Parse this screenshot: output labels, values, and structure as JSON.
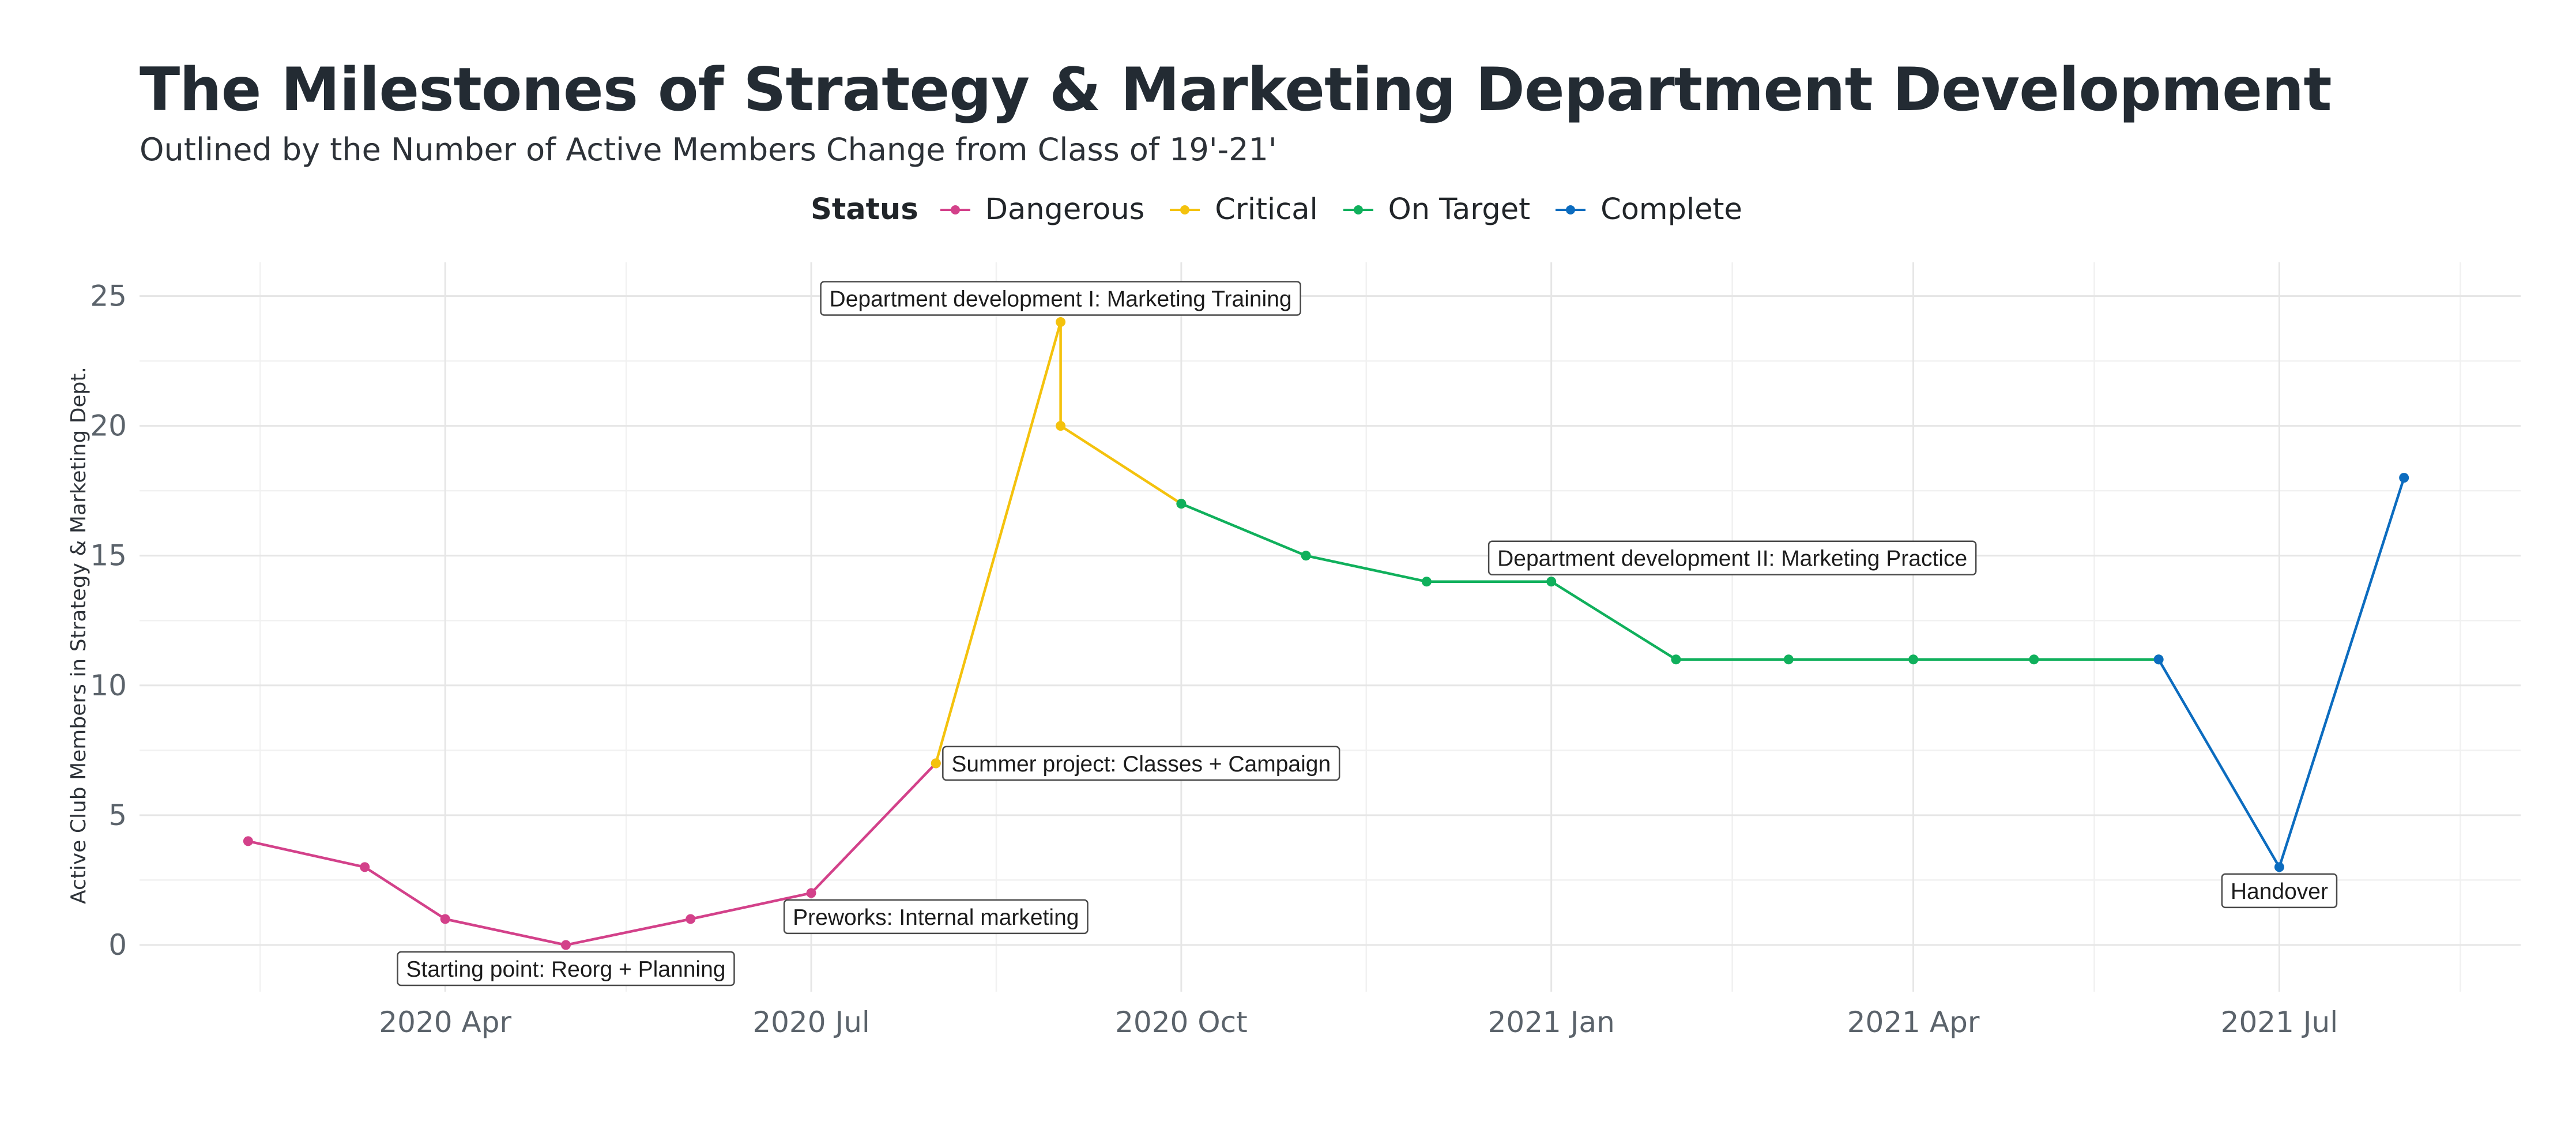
{
  "chart_data": {
    "type": "line",
    "title": "The Milestones of Strategy & Marketing Department Development",
    "subtitle": "Outlined by the Number of Active Members Change from Class of 19'-21'",
    "ylabel": "Active Club Members in Strategy & Marketing Dept.",
    "xlabel": "",
    "ylim": [
      -1.8,
      26.3
    ],
    "xlim": [
      "2020-01-16",
      "2021-08-30"
    ],
    "yticks": [
      0,
      5,
      10,
      15,
      20,
      25
    ],
    "xticks": [
      {
        "date": "2020-04-01",
        "label": "2020 Apr"
      },
      {
        "date": "2020-07-01",
        "label": "2020 Jul"
      },
      {
        "date": "2020-10-01",
        "label": "2020 Oct"
      },
      {
        "date": "2021-01-01",
        "label": "2021 Jan"
      },
      {
        "date": "2021-04-01",
        "label": "2021 Apr"
      },
      {
        "date": "2021-07-01",
        "label": "2021 Jul"
      }
    ],
    "legend": {
      "title": "Status",
      "placement": "top-center"
    },
    "grid": true,
    "series": [
      {
        "name": "Dangerous",
        "color": "#d3418a",
        "points": [
          {
            "x": "2020-02-12",
            "y": 4
          },
          {
            "x": "2020-03-12",
            "y": 3
          },
          {
            "x": "2020-04-01",
            "y": 1
          },
          {
            "x": "2020-05-01",
            "y": 0
          },
          {
            "x": "2020-06-01",
            "y": 1
          },
          {
            "x": "2020-07-01",
            "y": 2
          },
          {
            "x": "2020-08-01",
            "y": 7
          }
        ]
      },
      {
        "name": "Critical",
        "color": "#f4c20d",
        "points": [
          {
            "x": "2020-08-01",
            "y": 7
          },
          {
            "x": "2020-09-01",
            "y": 24
          },
          {
            "x": "2020-09-01",
            "y": 20
          },
          {
            "x": "2020-10-01",
            "y": 17
          }
        ]
      },
      {
        "name": "On Target",
        "color": "#10b05c",
        "points": [
          {
            "x": "2020-10-01",
            "y": 17
          },
          {
            "x": "2020-11-01",
            "y": 15
          },
          {
            "x": "2020-12-01",
            "y": 14
          },
          {
            "x": "2021-01-01",
            "y": 14
          },
          {
            "x": "2021-02-01",
            "y": 11
          },
          {
            "x": "2021-03-01",
            "y": 11
          },
          {
            "x": "2021-04-01",
            "y": 11
          },
          {
            "x": "2021-05-01",
            "y": 11
          },
          {
            "x": "2021-06-01",
            "y": 11
          }
        ]
      },
      {
        "name": "Complete",
        "color": "#0c6cbf",
        "points": [
          {
            "x": "2021-06-01",
            "y": 11
          },
          {
            "x": "2021-07-01",
            "y": 3
          },
          {
            "x": "2021-08-01",
            "y": 18
          }
        ]
      }
    ],
    "annotations": [
      {
        "text": "Starting point: Reorg + Planning",
        "x": "2020-05-01",
        "y": 0,
        "anchor": "below"
      },
      {
        "text": "Preworks: Internal marketing",
        "x": "2020-08-01",
        "y": 2,
        "anchor": "below"
      },
      {
        "text": "Summer project: Classes + Campaign",
        "x": "2020-08-01",
        "y": 7,
        "anchor": "right"
      },
      {
        "text": "Department development I: Marketing Training",
        "x": "2020-09-01",
        "y": 24,
        "anchor": "above"
      },
      {
        "text": "Department development II: Marketing Practice",
        "x": "2021-02-15",
        "y": 14,
        "anchor": "above"
      },
      {
        "text": "Handover",
        "x": "2021-07-01",
        "y": 3,
        "anchor": "below"
      }
    ]
  }
}
